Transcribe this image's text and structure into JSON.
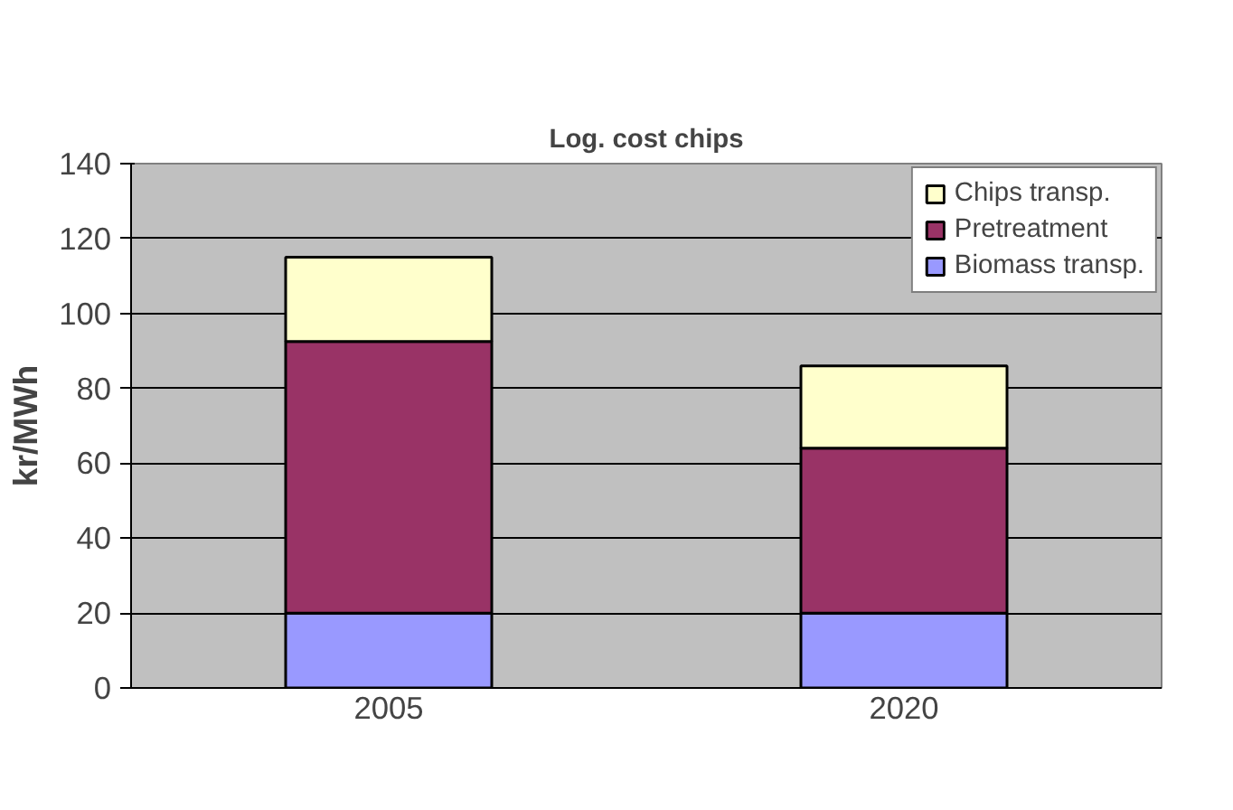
{
  "chart_data": {
    "type": "bar",
    "title": "Log. cost chips",
    "ylabel": "kr/MWh",
    "categories": [
      "2005",
      "2020"
    ],
    "stacked": true,
    "series": [
      {
        "name": "Biomass transp.",
        "color": "#9999ff",
        "values": [
          20,
          20
        ]
      },
      {
        "name": "Pretreatment",
        "color": "#993366",
        "values": [
          72.5,
          44
        ]
      },
      {
        "name": "Chips transp.",
        "color": "#ffffcc",
        "values": [
          22.5,
          22
        ]
      }
    ],
    "ylim": [
      0,
      140
    ],
    "yticks": [
      0,
      20,
      40,
      60,
      80,
      100,
      120,
      140
    ],
    "grid": "y",
    "legend": "top right"
  }
}
